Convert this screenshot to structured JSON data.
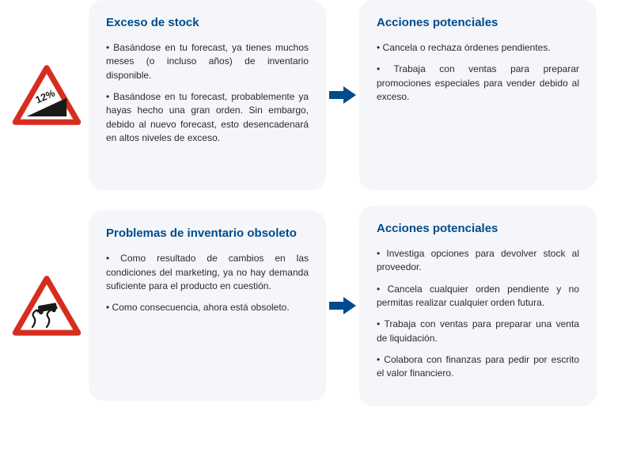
{
  "colors": {
    "card_bg": "#f4f6f9",
    "title": "#004b8d",
    "text": "#2b2b2b",
    "arrow": "#004b8d",
    "sign_border": "#d72d1f",
    "sign_fill": "#ffffff",
    "sign_inner": "#1a1a1a"
  },
  "rows": [
    {
      "sign": {
        "type": "slope",
        "label": "12%"
      },
      "left": {
        "title": "Exceso de stock",
        "bullets": [
          "• Basándose en tu forecast, ya tienes muchos meses (o incluso años) de inventario disponible.",
          "•  Basándose en tu forecast, probablemente ya hayas hecho una gran orden. Sin embargo, debido al nuevo forecast, esto desencadenará en altos niveles de exceso."
        ]
      },
      "right": {
        "title": "Acciones potenciales",
        "bullets": [
          "• Cancela o rechaza órdenes pendientes.",
          "• Trabaja con ventas para preparar promociones especiales para vender debido al exceso."
        ]
      }
    },
    {
      "sign": {
        "type": "skid",
        "label": ""
      },
      "left": {
        "title": "Problemas de inventario obsoleto",
        "bullets": [
          "• Como resultado de cambios en las condiciones del marketing, ya no hay demanda suficiente para el producto en cuestión.",
          "• Como consecuencia, ahora está obsoleto."
        ]
      },
      "right": {
        "title": "Acciones potenciales",
        "bullets": [
          "• Investiga opciones para devolver stock al provee­dor.",
          "• Cancela cualquier orden pendiente y no permitas realizar cualquier orden futura.",
          "• Trabaja con ventas para preparar una venta de liquidación.",
          "• Colabora con finanzas para pedir por escrito el valor financiero."
        ]
      }
    }
  ]
}
